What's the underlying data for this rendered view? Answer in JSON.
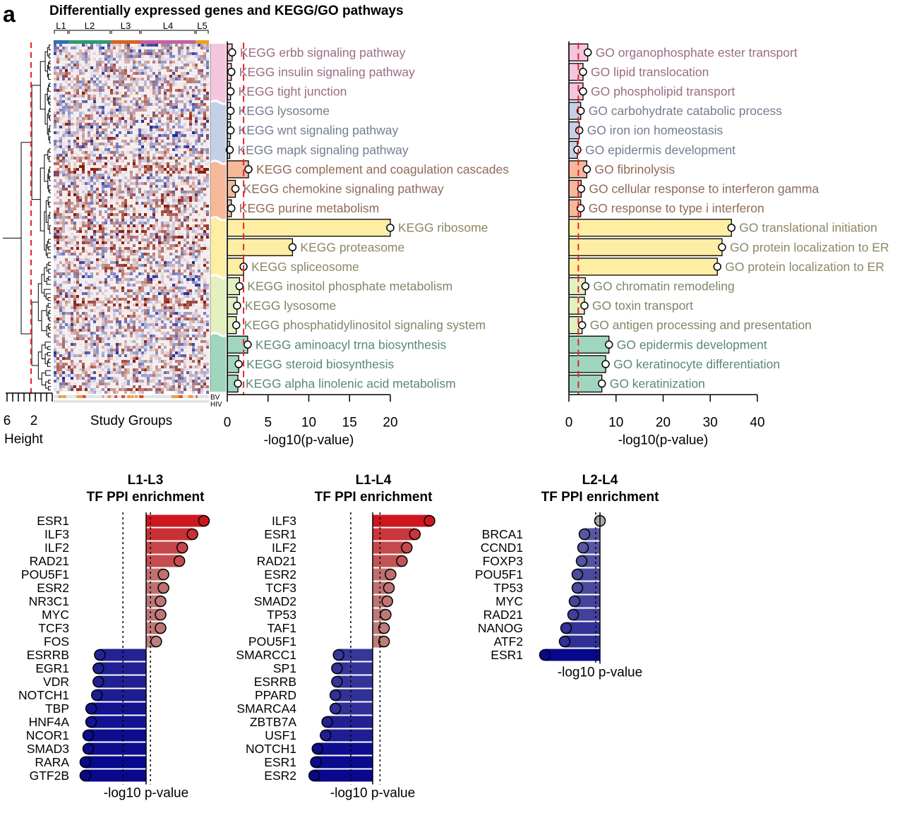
{
  "panel_letter": "a",
  "title": "Differentially expressed genes and KEGG/GO pathways",
  "colors": {
    "pink": "#f4c6dd",
    "blue": "#c3d0e6",
    "orange": "#f7b89a",
    "yellow": "#fdeea3",
    "lime": "#e3f0c0",
    "teal": "#9fd6bd",
    "txt_pink": "#9a6c86",
    "txt_blue": "#737d8f",
    "txt_orange": "#8f6a58",
    "txt_yellow": "#8e8763",
    "txt_lime": "#7b8868",
    "txt_teal": "#5a8775",
    "heat_red": "#8c1c0d",
    "heat_blue": "#1f2d96",
    "cutoff": "#e8232a"
  },
  "heatmap": {
    "groups": [
      {
        "label": "L1",
        "color": "#2e6fb0"
      },
      {
        "label": "L2",
        "color": "#2e9a72"
      },
      {
        "label": "L3",
        "color": "#d76320"
      },
      {
        "label": "L4",
        "color": "#c5629f"
      },
      {
        "label": "L5",
        "color": "#e6a11e"
      }
    ],
    "dendro_axis_ticks": [
      "6",
      "2"
    ],
    "dendro_axis_label": "Height",
    "xlabel": "Study Groups",
    "bottom_labels": [
      "BV",
      "HIV"
    ]
  },
  "chart_data": [
    {
      "type": "bar",
      "name": "KEGG",
      "categories": [
        "KEGG erbb signaling pathway",
        "KEGG insulin signaling pathway",
        "KEGG tight junction",
        "KEGG lysosome",
        "KEGG wnt signaling pathway",
        "KEGG mapk signaling pathway",
        "KEGG complement and coagulation cascades",
        "KEGG chemokine signaling pathway",
        "KEGG purine metabolism",
        "KEGG ribosome",
        "KEGG proteasome",
        "KEGG spliceosome",
        "KEGG inositol phosphate metabolism",
        "KEGG lysosome",
        "KEGG phosphatidylinositol signaling system",
        "KEGG aminoacyl trna biosynthesis",
        "KEGG steroid biosynthesis",
        "KEGG alpha linolenic acid metabolism"
      ],
      "values": [
        0.6,
        0.5,
        0.4,
        0.4,
        0.4,
        0.3,
        2.6,
        1.0,
        0.5,
        20.0,
        8.0,
        2.0,
        1.5,
        1.2,
        1.1,
        2.5,
        1.4,
        1.3
      ],
      "cluster_colors": [
        "pink",
        "pink",
        "pink",
        "blue",
        "blue",
        "blue",
        "orange",
        "orange",
        "orange",
        "yellow",
        "yellow",
        "yellow",
        "lime",
        "lime",
        "lime",
        "teal",
        "teal",
        "teal"
      ],
      "cutoff": 2,
      "xlim": [
        0,
        20
      ],
      "xticks": [
        "0",
        "5",
        "10",
        "15",
        "20"
      ],
      "xlabel": "-log10(p-value)"
    },
    {
      "type": "bar",
      "name": "GO",
      "categories": [
        "GO organophosphate ester transport",
        "GO lipid translocation",
        "GO phospholipid transport",
        "GO carbohydrate catabolic process",
        "GO iron ion homeostasis",
        "GO epidermis development",
        "GO fibrinolysis",
        "GO cellular response to interferon gamma",
        "GO response to type i interferon",
        "GO translational initiation",
        "GO protein localization to ER",
        "GO protein localization to ER",
        "GO chromatin remodeling",
        "GO toxin transport",
        "GO antigen processing and presentation",
        "GO epidermis development",
        "GO keratinocyte differentiation",
        "GO keratinization"
      ],
      "values": [
        4.0,
        3.0,
        3.0,
        2.5,
        2.2,
        1.8,
        3.8,
        2.6,
        2.5,
        34.5,
        32.5,
        31.5,
        3.5,
        3.3,
        2.8,
        8.5,
        7.8,
        7.0
      ],
      "cluster_colors": [
        "pink",
        "pink",
        "pink",
        "blue",
        "blue",
        "blue",
        "orange",
        "orange",
        "orange",
        "yellow",
        "yellow",
        "yellow",
        "lime",
        "lime",
        "lime",
        "teal",
        "teal",
        "teal"
      ],
      "cutoff": 2,
      "xlim": [
        0,
        40
      ],
      "xticks": [
        "0",
        "10",
        "20",
        "30",
        "40"
      ],
      "xlabel": "-log10(p-value)"
    },
    {
      "type": "bar",
      "name": "L1-L3",
      "title_lines": [
        "L1-L3",
        "TF PPI enrichment"
      ],
      "categories": [
        "ESR1",
        "ILF3",
        "ILF2",
        "RAD21",
        "POU5F1",
        "ESR2",
        "NR3C1",
        "MYC",
        "TCF3",
        "FOS",
        "ESRRB",
        "EGR1",
        "VDR",
        "NOTCH1",
        "TBP",
        "HNF4A",
        "NCOR1",
        "SMAD3",
        "RARA",
        "GTF2B"
      ],
      "values": [
        4.0,
        3.2,
        2.5,
        2.3,
        1.2,
        1.2,
        1.0,
        1.0,
        1.0,
        0.7,
        -3.2,
        -3.3,
        -3.3,
        -3.4,
        -3.8,
        -3.8,
        -4.0,
        -4.0,
        -4.2,
        -4.2
      ],
      "xlabel": "-log10 p-value"
    },
    {
      "type": "bar",
      "name": "L1-L4",
      "title_lines": [
        "L1-L4",
        "TF PPI enrichment"
      ],
      "categories": [
        "ILF3",
        "ESR1",
        "ILF2",
        "RAD21",
        "ESR2",
        "TCF3",
        "SMAD2",
        "TP53",
        "TAF1",
        "POU5F1",
        "SMARCC1",
        "SP1",
        "ESRRB",
        "PPARD",
        "SMARCA4",
        "ZBTB7A",
        "USF1",
        "NOTCH1",
        "ESR1",
        "ESR2"
      ],
      "values": [
        3.5,
        2.6,
        2.1,
        1.8,
        1.1,
        1.0,
        0.9,
        0.8,
        0.7,
        0.7,
        -2.1,
        -2.2,
        -2.2,
        -2.3,
        -2.3,
        -2.8,
        -2.9,
        -3.4,
        -3.5,
        -3.6
      ],
      "xlabel": "-log10 p-value"
    },
    {
      "type": "bar",
      "name": "L2-L4",
      "title_lines": [
        "L2-L4",
        "TF PPI enrichment"
      ],
      "categories": [
        "",
        "BRCA1",
        "CCND1",
        "FOXP3",
        "POU5F1",
        "TP53",
        "MYC",
        "RAD21",
        "NANOG",
        "ATF2",
        "ESR1"
      ],
      "values": [
        0.0,
        -1.1,
        -1.2,
        -1.3,
        -1.6,
        -1.6,
        -1.8,
        -1.9,
        -2.4,
        -2.5,
        -3.9
      ],
      "xlabel": "-log10 p-value"
    }
  ]
}
